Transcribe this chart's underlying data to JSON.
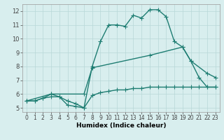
{
  "line1_x": [
    0,
    1,
    2,
    3,
    4,
    5,
    6,
    7,
    8,
    9,
    10,
    11,
    12,
    13,
    14,
    15,
    16,
    17,
    18,
    19,
    20,
    21,
    22,
    23
  ],
  "line1_y": [
    5.5,
    5.5,
    5.7,
    6.0,
    5.8,
    5.2,
    5.1,
    5.0,
    8.0,
    9.8,
    11.0,
    11.0,
    10.9,
    11.7,
    11.5,
    12.1,
    12.1,
    11.6,
    9.8,
    9.4,
    8.4,
    7.2,
    6.5,
    6.5
  ],
  "line2_x": [
    0,
    3,
    7,
    8,
    15,
    19,
    20,
    22,
    23
  ],
  "line2_y": [
    5.5,
    6.0,
    6.0,
    7.9,
    8.8,
    9.4,
    8.4,
    7.5,
    7.2
  ],
  "line3_x": [
    0,
    1,
    2,
    3,
    4,
    5,
    6,
    7,
    8,
    9,
    10,
    11,
    12,
    13,
    14,
    15,
    16,
    17,
    18,
    19,
    20,
    21,
    22,
    23
  ],
  "line3_y": [
    5.5,
    5.5,
    5.7,
    5.8,
    5.8,
    5.5,
    5.3,
    5.0,
    5.9,
    6.1,
    6.2,
    6.3,
    6.3,
    6.4,
    6.4,
    6.5,
    6.5,
    6.5,
    6.5,
    6.5,
    6.5,
    6.5,
    6.5,
    6.5
  ],
  "color": "#1e7d72",
  "bg_color": "#d8eeee",
  "grid_color": "#b8d8d8",
  "grid_color_minor": "#c8e4e4",
  "xlabel": "Humidex (Indice chaleur)",
  "xlim": [
    -0.5,
    23.5
  ],
  "ylim": [
    4.7,
    12.5
  ],
  "xticks": [
    0,
    1,
    2,
    3,
    4,
    5,
    6,
    7,
    8,
    9,
    10,
    11,
    12,
    13,
    14,
    15,
    16,
    17,
    18,
    19,
    20,
    21,
    22,
    23
  ],
  "yticks": [
    5,
    6,
    7,
    8,
    9,
    10,
    11,
    12
  ],
  "marker": "+",
  "markersize": 4,
  "linewidth": 1.0
}
